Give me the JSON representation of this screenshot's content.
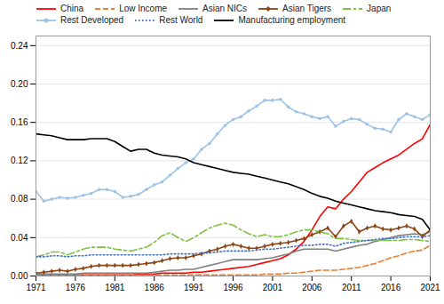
{
  "chart_data": {
    "type": "line",
    "x": [
      1971,
      1972,
      1973,
      1974,
      1975,
      1976,
      1977,
      1978,
      1979,
      1980,
      1981,
      1982,
      1983,
      1984,
      1985,
      1986,
      1987,
      1988,
      1989,
      1990,
      1991,
      1992,
      1993,
      1994,
      1995,
      1996,
      1997,
      1998,
      1999,
      2000,
      2001,
      2002,
      2003,
      2004,
      2005,
      2006,
      2007,
      2008,
      2009,
      2010,
      2011,
      2012,
      2013,
      2014,
      2015,
      2016,
      2017,
      2018,
      2019,
      2020,
      2021
    ],
    "series": [
      {
        "name": "China",
        "color": "#FF0000",
        "line_style": "solid",
        "values": [
          0.001,
          0.001,
          0.001,
          0.001,
          0.001,
          0.001,
          0.001,
          0.001,
          0.001,
          0.001,
          0.001,
          0.001,
          0.001,
          0.002,
          0.002,
          0.002,
          0.003,
          0.003,
          0.003,
          0.003,
          0.004,
          0.004,
          0.005,
          0.006,
          0.007,
          0.008,
          0.009,
          0.01,
          0.012,
          0.014,
          0.016,
          0.018,
          0.022,
          0.028,
          0.036,
          0.048,
          0.062,
          0.072,
          0.07,
          0.08,
          0.088,
          0.098,
          0.108,
          0.113,
          0.118,
          0.122,
          0.126,
          0.132,
          0.138,
          0.143,
          0.158
        ]
      },
      {
        "name": "Low Income",
        "color": "#ED7D31",
        "line_style": "dashed",
        "values": [
          0.001,
          0.001,
          0.001,
          0.001,
          0.001,
          0.001,
          0.001,
          0.001,
          0.001,
          0.001,
          0.001,
          0.001,
          0.001,
          0.001,
          0.001,
          0.001,
          0.001,
          0.001,
          0.001,
          0.001,
          0.001,
          0.001,
          0.001,
          0.001,
          0.001,
          0.001,
          0.001,
          0.001,
          0.001,
          0.002,
          0.002,
          0.002,
          0.003,
          0.003,
          0.004,
          0.005,
          0.006,
          0.006,
          0.006,
          0.007,
          0.008,
          0.009,
          0.011,
          0.013,
          0.016,
          0.019,
          0.021,
          0.024,
          0.026,
          0.027,
          0.032
        ]
      },
      {
        "name": "Asian NICs",
        "color": "#808080",
        "line_style": "solid",
        "values": [
          0.002,
          0.002,
          0.002,
          0.002,
          0.002,
          0.002,
          0.003,
          0.003,
          0.003,
          0.003,
          0.003,
          0.003,
          0.003,
          0.003,
          0.003,
          0.004,
          0.005,
          0.006,
          0.006,
          0.007,
          0.007,
          0.009,
          0.011,
          0.013,
          0.015,
          0.017,
          0.017,
          0.017,
          0.017,
          0.018,
          0.019,
          0.021,
          0.023,
          0.026,
          0.028,
          0.028,
          0.028,
          0.028,
          0.026,
          0.028,
          0.03,
          0.032,
          0.033,
          0.036,
          0.038,
          0.04,
          0.042,
          0.043,
          0.044,
          0.043,
          0.046
        ]
      },
      {
        "name": "Asian Tigers",
        "color": "#8B4513",
        "line_style": "solid",
        "marker": "diamond",
        "values": [
          0.003,
          0.004,
          0.005,
          0.006,
          0.005,
          0.007,
          0.008,
          0.01,
          0.011,
          0.011,
          0.011,
          0.011,
          0.011,
          0.012,
          0.013,
          0.014,
          0.016,
          0.018,
          0.019,
          0.019,
          0.021,
          0.023,
          0.026,
          0.028,
          0.031,
          0.033,
          0.031,
          0.029,
          0.029,
          0.031,
          0.033,
          0.034,
          0.035,
          0.037,
          0.039,
          0.043,
          0.046,
          0.05,
          0.041,
          0.052,
          0.057,
          0.046,
          0.05,
          0.052,
          0.049,
          0.048,
          0.05,
          0.052,
          0.049,
          0.041,
          0.048
        ]
      },
      {
        "name": "Japan",
        "color": "#7BC142",
        "line_style": "dashdot",
        "values": [
          0.02,
          0.022,
          0.025,
          0.025,
          0.022,
          0.025,
          0.028,
          0.03,
          0.03,
          0.03,
          0.028,
          0.027,
          0.026,
          0.028,
          0.03,
          0.035,
          0.042,
          0.045,
          0.04,
          0.036,
          0.04,
          0.045,
          0.05,
          0.053,
          0.055,
          0.053,
          0.048,
          0.044,
          0.041,
          0.043,
          0.041,
          0.041,
          0.043,
          0.046,
          0.048,
          0.048,
          0.046,
          0.044,
          0.039,
          0.039,
          0.038,
          0.037,
          0.037,
          0.037,
          0.037,
          0.037,
          0.037,
          0.038,
          0.038,
          0.037,
          0.036
        ]
      },
      {
        "name": "Rest Developed",
        "color": "#9DC3E6",
        "line_style": "solid",
        "marker": "circle",
        "values": [
          0.088,
          0.078,
          0.08,
          0.082,
          0.081,
          0.082,
          0.084,
          0.086,
          0.09,
          0.09,
          0.088,
          0.082,
          0.083,
          0.085,
          0.09,
          0.095,
          0.098,
          0.105,
          0.112,
          0.118,
          0.122,
          0.132,
          0.138,
          0.148,
          0.157,
          0.163,
          0.166,
          0.172,
          0.177,
          0.183,
          0.183,
          0.184,
          0.176,
          0.171,
          0.169,
          0.166,
          0.164,
          0.166,
          0.156,
          0.161,
          0.164,
          0.163,
          0.158,
          0.154,
          0.153,
          0.15,
          0.163,
          0.169,
          0.166,
          0.163,
          0.168
        ]
      },
      {
        "name": "Rest World",
        "color": "#4472C4",
        "line_style": "dotted",
        "values": [
          0.02,
          0.02,
          0.021,
          0.021,
          0.02,
          0.021,
          0.021,
          0.022,
          0.022,
          0.022,
          0.022,
          0.022,
          0.022,
          0.022,
          0.022,
          0.022,
          0.022,
          0.023,
          0.023,
          0.023,
          0.023,
          0.024,
          0.024,
          0.025,
          0.026,
          0.026,
          0.026,
          0.026,
          0.027,
          0.028,
          0.028,
          0.029,
          0.03,
          0.031,
          0.032,
          0.032,
          0.033,
          0.033,
          0.031,
          0.034,
          0.035,
          0.036,
          0.037,
          0.038,
          0.039,
          0.039,
          0.04,
          0.041,
          0.041,
          0.041,
          0.042
        ]
      },
      {
        "name": "Manufacturing employment",
        "color": "#000000",
        "line_style": "solid",
        "values": [
          0.148,
          0.147,
          0.146,
          0.144,
          0.142,
          0.142,
          0.142,
          0.143,
          0.143,
          0.143,
          0.14,
          0.135,
          0.13,
          0.132,
          0.132,
          0.128,
          0.126,
          0.125,
          0.124,
          0.122,
          0.118,
          0.116,
          0.114,
          0.112,
          0.11,
          0.108,
          0.107,
          0.106,
          0.104,
          0.102,
          0.1,
          0.098,
          0.096,
          0.093,
          0.09,
          0.086,
          0.083,
          0.081,
          0.078,
          0.076,
          0.074,
          0.072,
          0.07,
          0.068,
          0.067,
          0.066,
          0.064,
          0.063,
          0.062,
          0.059,
          0.048
        ]
      }
    ],
    "xlim": [
      1971,
      2021
    ],
    "xticks": [
      1971,
      1976,
      1981,
      1986,
      1991,
      1996,
      2001,
      2006,
      2011,
      2016,
      2021
    ],
    "ylim": [
      0.0,
      0.25
    ],
    "yticks": [
      {
        "value": 0.0,
        "label": "0.00"
      },
      {
        "value": 0.04,
        "label": "0.04"
      },
      {
        "value": 0.08,
        "label": "0.08"
      },
      {
        "value": 0.12,
        "label": "0.12"
      },
      {
        "value": 0.16,
        "label": "0.16"
      },
      {
        "value": 0.2,
        "label": "0.20"
      },
      {
        "value": 0.24,
        "label": "0.24"
      }
    ],
    "grid": true,
    "legend": "upper left"
  }
}
